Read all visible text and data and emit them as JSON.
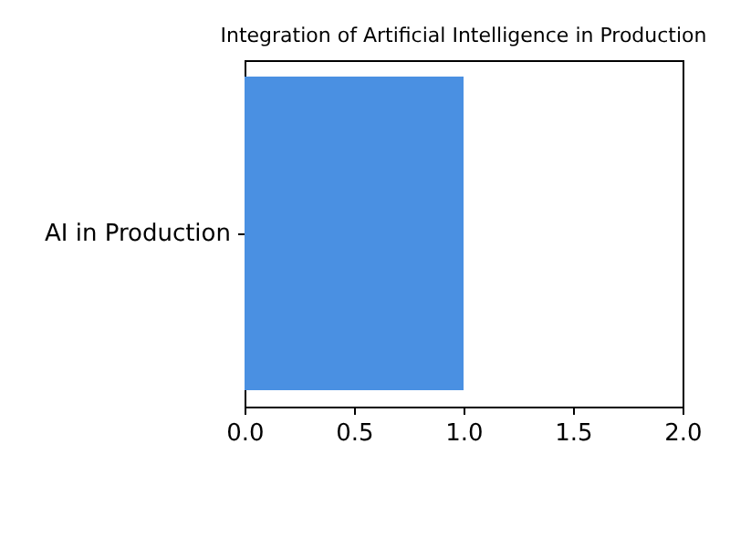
{
  "chart_data": {
    "type": "bar",
    "orientation": "horizontal",
    "title": "Integration of Artificial Intelligence in Production",
    "categories": [
      "AI in Production"
    ],
    "values": [
      1.0
    ],
    "color": "#4a90e2",
    "xlim": [
      0,
      2
    ],
    "xticks": [
      {
        "value": 0,
        "label": "0.0"
      },
      0.5,
      {
        "value": 1,
        "label": "1.0"
      },
      1.5,
      {
        "value": 2,
        "label": "2.0"
      }
    ],
    "grid": false
  }
}
